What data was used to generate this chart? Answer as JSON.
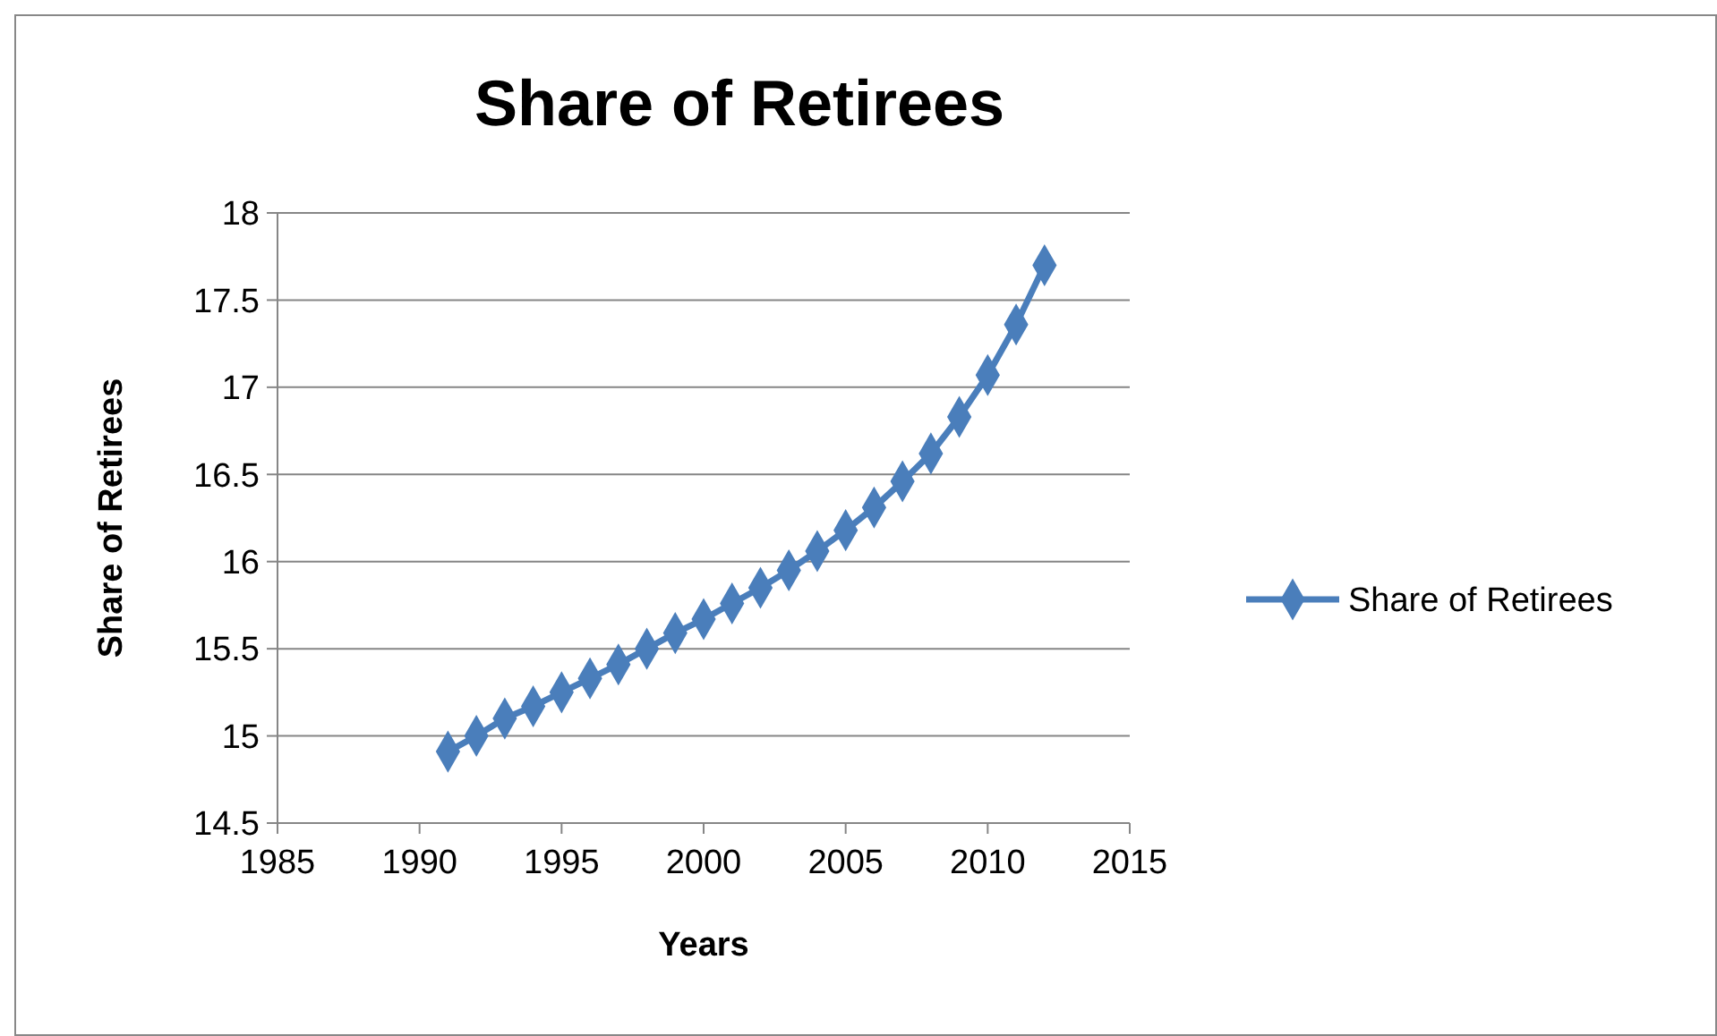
{
  "chart_data": {
    "type": "line",
    "title": "Share of Retirees",
    "xlabel": "Years",
    "ylabel": "Share of Retirees",
    "x": [
      1991,
      1992,
      1993,
      1994,
      1995,
      1996,
      1997,
      1998,
      1999,
      2000,
      2001,
      2002,
      2003,
      2004,
      2005,
      2006,
      2007,
      2008,
      2009,
      2010,
      2011,
      2012
    ],
    "series": [
      {
        "name": "Share of Retirees",
        "color": "#4a7ebb",
        "values": [
          14.91,
          15.0,
          15.1,
          15.17,
          15.25,
          15.33,
          15.41,
          15.5,
          15.59,
          15.67,
          15.76,
          15.85,
          15.95,
          16.06,
          16.18,
          16.31,
          16.46,
          16.62,
          16.83,
          17.07,
          17.36,
          17.7
        ]
      }
    ],
    "xlim": [
      1985,
      2015
    ],
    "xticks": [
      1985,
      1990,
      1995,
      2000,
      2005,
      2010,
      2015
    ],
    "ylim": [
      14.5,
      18
    ],
    "yticks": [
      14.5,
      15,
      15.5,
      16,
      16.5,
      17,
      17.5,
      18
    ],
    "grid": "y",
    "legend": "right",
    "marker": "diamond",
    "line_style": "solid"
  }
}
